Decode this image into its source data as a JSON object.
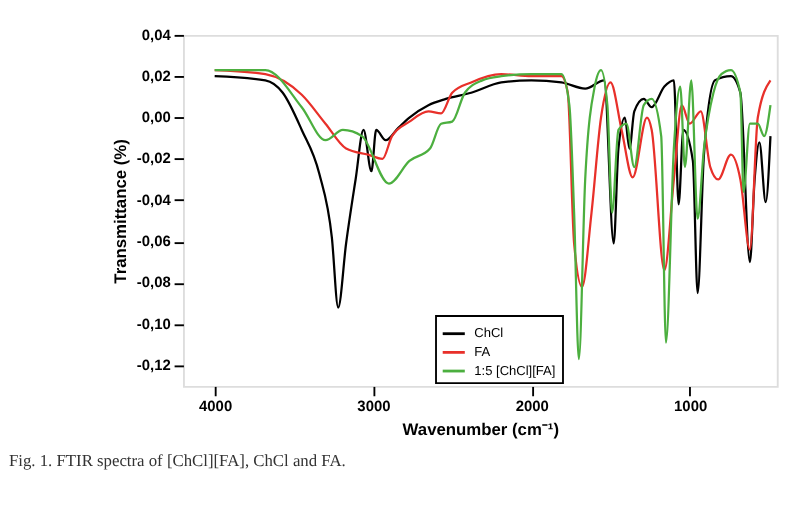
{
  "chart_data": {
    "type": "line",
    "xlabel": "Wavenumber (cm⁻¹)",
    "ylabel": "Transmittance (%)",
    "annotations": [
      "Fig. 1. FTIR spectra of [ChCl][FA], ChCl and FA."
    ],
    "xlim": [
      4200,
      450
    ],
    "xticks": [
      4000,
      3000,
      2000,
      1000
    ],
    "ylim": [
      -0.13,
      0.04
    ],
    "yticks": [
      {
        "value": 0.04,
        "label": "0,04"
      },
      {
        "value": 0.02,
        "label": "0,02"
      },
      {
        "value": 0,
        "label": "0,00"
      },
      {
        "value": -0.02,
        "label": "-0,02"
      },
      {
        "value": -0.04,
        "label": "-0,04"
      },
      {
        "value": -0.06,
        "label": "-0,06"
      },
      {
        "value": -0.08,
        "label": "-0,08"
      },
      {
        "value": -0.1,
        "label": "-0,10"
      },
      {
        "value": -0.12,
        "label": "-0,12"
      }
    ],
    "grid": false,
    "legend": "bottom",
    "marker": "none",
    "line_style": "solid",
    "series": [
      {
        "name": "ChCl",
        "color": "#000000",
        "x": [
          4000,
          3680,
          3570,
          3450,
          3340,
          3260,
          3220,
          3170,
          3110,
          3060,
          3010,
          2980,
          2920,
          2840,
          2770,
          2650,
          2540,
          2380,
          2190,
          2000,
          1810,
          1660,
          1540,
          1480,
          1450,
          1410,
          1380,
          1350,
          1290,
          1240,
          1160,
          1100,
          1070,
          1040,
          980,
          950,
          910,
          840,
          740,
          680,
          620,
          590,
          560,
          520,
          490
        ],
        "values": [
          0.02,
          0.018,
          0.012,
          -0.006,
          -0.027,
          -0.058,
          -0.092,
          -0.061,
          -0.03,
          -0.006,
          -0.026,
          -0.006,
          -0.011,
          -0.005,
          0.0,
          0.006,
          0.009,
          0.012,
          0.017,
          0.018,
          0.017,
          0.014,
          0.018,
          -0.061,
          -0.015,
          0.0,
          -0.015,
          0.003,
          0.009,
          0.005,
          0.015,
          0.018,
          -0.042,
          -0.006,
          -0.021,
          -0.085,
          -0.018,
          0.018,
          0.02,
          0.012,
          -0.07,
          -0.03,
          -0.012,
          -0.041,
          -0.009
        ]
      },
      {
        "name": "FA",
        "color": "#e8302a",
        "x": [
          4000,
          3680,
          3450,
          3300,
          3170,
          3030,
          2940,
          2880,
          2770,
          2650,
          2570,
          2500,
          2380,
          2190,
          2000,
          1810,
          1770,
          1730,
          1680,
          1620,
          1560,
          1500,
          1430,
          1360,
          1270,
          1240,
          1160,
          1100,
          1050,
          1000,
          930,
          870,
          820,
          740,
          680,
          620,
          570,
          490
        ],
        "values": [
          0.023,
          0.021,
          0.011,
          -0.003,
          -0.015,
          -0.018,
          -0.02,
          -0.009,
          -0.002,
          0.003,
          0.002,
          0.012,
          0.017,
          0.021,
          0.02,
          0.02,
          0.012,
          -0.061,
          -0.082,
          -0.046,
          0.0,
          0.017,
          -0.006,
          -0.029,
          0.0,
          -0.006,
          -0.074,
          -0.03,
          0.006,
          -0.003,
          0.003,
          -0.024,
          -0.03,
          -0.018,
          -0.03,
          -0.064,
          0.0,
          0.018
        ]
      },
      {
        "name": "1:5 [ChCl][FA]",
        "color": "#4caf3f",
        "x": [
          4000,
          3680,
          3450,
          3300,
          3190,
          3070,
          2900,
          2770,
          2640,
          2570,
          2500,
          2420,
          2310,
          2190,
          2000,
          1810,
          1760,
          1730,
          1700,
          1660,
          1600,
          1560,
          1520,
          1490,
          1450,
          1400,
          1350,
          1290,
          1240,
          1180,
          1150,
          1100,
          1060,
          1030,
          990,
          950,
          910,
          850,
          800,
          740,
          680,
          660,
          620,
          570,
          530,
          490
        ],
        "values": [
          0.023,
          0.023,
          0.005,
          -0.011,
          -0.006,
          -0.009,
          -0.032,
          -0.021,
          -0.015,
          -0.003,
          -0.002,
          0.012,
          0.018,
          0.02,
          0.021,
          0.021,
          0.006,
          -0.046,
          -0.117,
          -0.03,
          0.015,
          0.023,
          0.006,
          -0.046,
          -0.006,
          -0.003,
          -0.024,
          0.006,
          0.009,
          -0.009,
          -0.109,
          -0.015,
          0.015,
          -0.024,
          0.018,
          -0.049,
          -0.015,
          0.012,
          0.021,
          0.023,
          0.012,
          -0.036,
          -0.003,
          -0.003,
          -0.009,
          0.006
        ]
      }
    ]
  }
}
